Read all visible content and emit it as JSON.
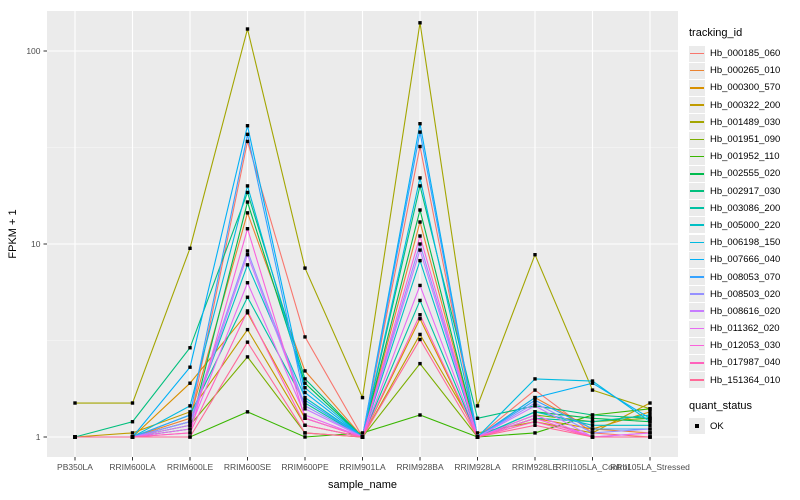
{
  "chart_data": {
    "type": "line",
    "title": "",
    "xlabel": "sample_name",
    "ylabel": "FPKM + 1",
    "y_scale": "log10",
    "ylim": [
      1,
      160
    ],
    "y_ticks": [
      1,
      10,
      100
    ],
    "y_minor_ticks": [
      3.1623,
      31.623
    ],
    "grid": true,
    "panel_background": "#EBEBEB",
    "gridline_color": "#FFFFFF",
    "point_color": "#000000",
    "point_shape": "square",
    "legend_title": "tracking_id",
    "legend_position": "right",
    "categories": [
      "PB350LA",
      "RRIM600LA",
      "RRIM600LE",
      "RRIM600SE",
      "RRIM600PE",
      "RRIM901LA",
      "RRIM928BA",
      "RRIM928LA",
      "RRIM928LE",
      "RRII105LA_Control",
      "RRII105LA_Stressed"
    ],
    "series": [
      {
        "name": "Hb_000185_060",
        "color": "#F8766D",
        "values": [
          1,
          1,
          1.2,
          34,
          3.3,
          1,
          32,
          1,
          1.75,
          1.05,
          1
        ]
      },
      {
        "name": "Hb_000265_010",
        "color": "#EA8331",
        "values": [
          1,
          1,
          1.25,
          14.5,
          2.2,
          1,
          13,
          1,
          1.6,
          1.1,
          1.05
        ]
      },
      {
        "name": "Hb_000300_570",
        "color": "#D89000",
        "values": [
          1,
          1,
          1.9,
          4.4,
          1.25,
          1,
          4.1,
          1,
          1.25,
          1.1,
          1.35
        ]
      },
      {
        "name": "Hb_000322_200",
        "color": "#C09B00",
        "values": [
          1,
          1.05,
          1.35,
          3.6,
          1.15,
          1,
          3.4,
          1.05,
          1.2,
          1.05,
          1.5
        ]
      },
      {
        "name": "Hb_001489_030",
        "color": "#A3A500",
        "values": [
          1.5,
          1.5,
          9.5,
          130,
          7.5,
          1.6,
          140,
          1.45,
          8.8,
          1.75,
          1.4
        ]
      },
      {
        "name": "Hb_001951_090",
        "color": "#7CAE00",
        "values": [
          1,
          1,
          1.15,
          2.6,
          1.05,
          1,
          2.4,
          1,
          1.3,
          1.2,
          1.25
        ]
      },
      {
        "name": "Hb_001952_110",
        "color": "#39B600",
        "values": [
          1,
          1,
          1,
          1.35,
          1,
          1.05,
          1.3,
          1,
          1.05,
          1.3,
          1.4
        ]
      },
      {
        "name": "Hb_002555_020",
        "color": "#00BB4E",
        "values": [
          1,
          1,
          1.1,
          16.5,
          1.9,
          1,
          15,
          1,
          1.35,
          1.25,
          1.2
        ]
      },
      {
        "name": "Hb_002917_030",
        "color": "#00BF7D",
        "values": [
          1,
          1.2,
          2.9,
          18.5,
          2.0,
          1,
          20,
          1.25,
          1.45,
          1.3,
          1.25
        ]
      },
      {
        "name": "Hb_003086_200",
        "color": "#00C1A3",
        "values": [
          1,
          1,
          1.3,
          5.3,
          1.5,
          1,
          5.1,
          1,
          1.25,
          1.2,
          1.3
        ]
      },
      {
        "name": "Hb_005000_220",
        "color": "#00BFC4",
        "values": [
          1,
          1,
          1.2,
          7.8,
          1.6,
          1,
          8.2,
          1,
          1.35,
          1.15,
          1.15
        ]
      },
      {
        "name": "Hb_006198_150",
        "color": "#00BAE0",
        "values": [
          1,
          1,
          1.45,
          20,
          1.8,
          1,
          22,
          1,
          2.0,
          1.95,
          1.2
        ]
      },
      {
        "name": "Hb_007666_040",
        "color": "#00B0F6",
        "values": [
          1,
          1,
          2.3,
          41,
          1.7,
          1,
          42,
          1,
          1.6,
          1.9,
          1.25
        ]
      },
      {
        "name": "Hb_008053_070",
        "color": "#35A2FF",
        "values": [
          1,
          1,
          1.3,
          37,
          1.55,
          1,
          38,
          1,
          1.55,
          1.1,
          1.1
        ]
      },
      {
        "name": "Hb_008503_020",
        "color": "#9590FF",
        "values": [
          1,
          1,
          1.2,
          9.2,
          1.45,
          1,
          10,
          1,
          1.5,
          1.05,
          1.1
        ]
      },
      {
        "name": "Hb_008616_020",
        "color": "#C77CFF",
        "values": [
          1,
          1,
          1.15,
          8.8,
          1.4,
          1,
          9.3,
          1,
          1.45,
          1,
          1.05
        ]
      },
      {
        "name": "Hb_011362_020",
        "color": "#E76BF3",
        "values": [
          1,
          1,
          1.1,
          6.3,
          1.3,
          1,
          6.1,
          1,
          1.3,
          1,
          1.05
        ]
      },
      {
        "name": "Hb_012053_030",
        "color": "#FA62DB",
        "values": [
          1,
          1,
          1.05,
          12,
          1.25,
          1,
          11,
          1,
          1.25,
          1,
          1
        ]
      },
      {
        "name": "Hb_017987_040",
        "color": "#FF62BC",
        "values": [
          1,
          1,
          1.05,
          4.5,
          1.15,
          1,
          4.3,
          1,
          1.2,
          1,
          1
        ]
      },
      {
        "name": "Hb_151364_010",
        "color": "#FF6A98",
        "values": [
          1,
          1,
          1,
          3.1,
          1.05,
          1,
          3.2,
          1,
          1.15,
          1,
          1
        ]
      }
    ],
    "point_legend": {
      "title": "quant_status",
      "items": [
        {
          "label": "OK",
          "shape": "filled-square",
          "color": "#000000"
        }
      ]
    }
  }
}
